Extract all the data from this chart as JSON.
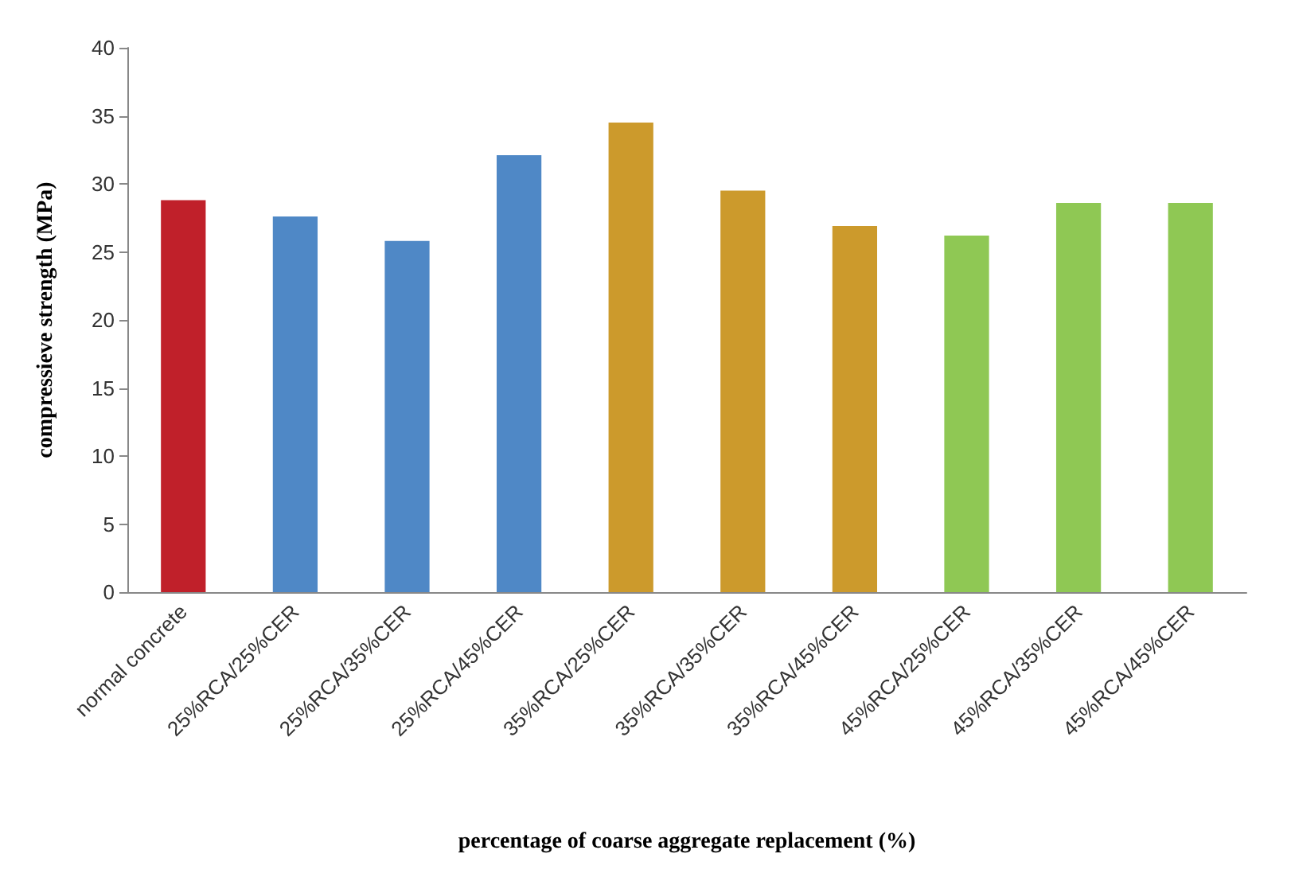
{
  "chart_data": {
    "type": "bar",
    "xlabel": "percentage of coarse aggregate replacement (%)",
    "ylabel": "compressieve strength (MPa)",
    "categories": [
      "normal concrete",
      "25%RCA/25%CER",
      "25%RCA/35%CER",
      "25%RCA/45%CER",
      "35%RCA/25%CER",
      "35%RCA/35%CER",
      "35%RCA/45%CER",
      "45%RCA/25%CER",
      "45%RCA/35%CER",
      "45%RCA/45%CER"
    ],
    "values": [
      28.8,
      27.6,
      25.8,
      32.1,
      34.5,
      29.5,
      26.9,
      26.2,
      28.6,
      28.6
    ],
    "colors": [
      "#c0202a",
      "#4f88c6",
      "#4f88c6",
      "#4f88c6",
      "#cc9a2c",
      "#cc9a2c",
      "#cc9a2c",
      "#8fc854",
      "#8fc854",
      "#8fc854"
    ],
    "ylim": [
      0,
      40
    ],
    "yticks": [
      0,
      5,
      10,
      15,
      20,
      25,
      30,
      35,
      40
    ]
  }
}
